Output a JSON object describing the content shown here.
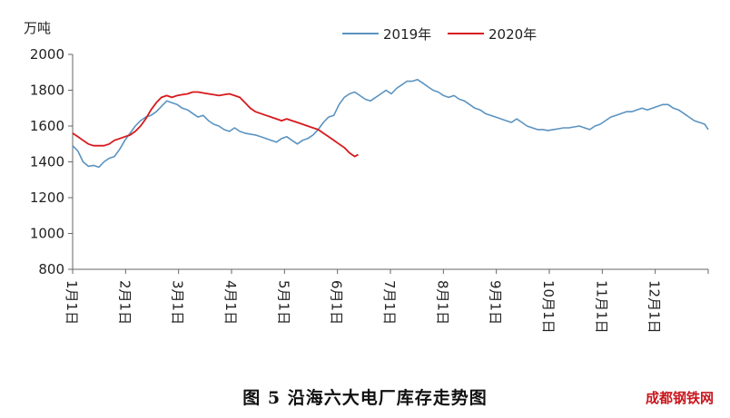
{
  "chart_data": {
    "type": "line",
    "unit_label": "万吨",
    "ylim": [
      800,
      2000
    ],
    "yticks": [
      800,
      1000,
      1200,
      1400,
      1600,
      1800,
      2000
    ],
    "x_categories": [
      "1月1日",
      "2月1日",
      "3月1日",
      "4月1日",
      "5月1日",
      "6月1日",
      "7月1日",
      "8月1日",
      "9月1日",
      "10月1日",
      "11月1日",
      "12月1日"
    ],
    "legend_position": "top-center",
    "grid": false,
    "series": [
      {
        "name": "2019年",
        "color": "#5b93c0",
        "points": [
          [
            0,
            1490
          ],
          [
            3,
            1460
          ],
          [
            6,
            1400
          ],
          [
            9,
            1375
          ],
          [
            12,
            1380
          ],
          [
            15,
            1370
          ],
          [
            18,
            1400
          ],
          [
            21,
            1420
          ],
          [
            24,
            1430
          ],
          [
            27,
            1470
          ],
          [
            30,
            1520
          ],
          [
            33,
            1560
          ],
          [
            36,
            1600
          ],
          [
            39,
            1630
          ],
          [
            42,
            1650
          ],
          [
            45,
            1660
          ],
          [
            48,
            1680
          ],
          [
            51,
            1710
          ],
          [
            54,
            1740
          ],
          [
            57,
            1730
          ],
          [
            60,
            1720
          ],
          [
            63,
            1700
          ],
          [
            66,
            1690
          ],
          [
            69,
            1670
          ],
          [
            72,
            1650
          ],
          [
            75,
            1660
          ],
          [
            78,
            1630
          ],
          [
            81,
            1610
          ],
          [
            84,
            1600
          ],
          [
            87,
            1580
          ],
          [
            90,
            1570
          ],
          [
            93,
            1590
          ],
          [
            96,
            1570
          ],
          [
            99,
            1560
          ],
          [
            102,
            1555
          ],
          [
            105,
            1550
          ],
          [
            108,
            1540
          ],
          [
            111,
            1530
          ],
          [
            114,
            1520
          ],
          [
            117,
            1510
          ],
          [
            120,
            1530
          ],
          [
            123,
            1540
          ],
          [
            126,
            1520
          ],
          [
            129,
            1500
          ],
          [
            132,
            1520
          ],
          [
            135,
            1530
          ],
          [
            138,
            1550
          ],
          [
            141,
            1580
          ],
          [
            144,
            1620
          ],
          [
            147,
            1650
          ],
          [
            150,
            1660
          ],
          [
            153,
            1720
          ],
          [
            156,
            1760
          ],
          [
            159,
            1780
          ],
          [
            162,
            1790
          ],
          [
            165,
            1770
          ],
          [
            168,
            1750
          ],
          [
            171,
            1740
          ],
          [
            174,
            1760
          ],
          [
            177,
            1780
          ],
          [
            180,
            1800
          ],
          [
            183,
            1780
          ],
          [
            186,
            1810
          ],
          [
            189,
            1830
          ],
          [
            192,
            1850
          ],
          [
            195,
            1850
          ],
          [
            198,
            1860
          ],
          [
            201,
            1840
          ],
          [
            204,
            1820
          ],
          [
            207,
            1800
          ],
          [
            210,
            1790
          ],
          [
            213,
            1770
          ],
          [
            216,
            1760
          ],
          [
            219,
            1770
          ],
          [
            222,
            1750
          ],
          [
            225,
            1740
          ],
          [
            228,
            1720
          ],
          [
            231,
            1700
          ],
          [
            234,
            1690
          ],
          [
            237,
            1670
          ],
          [
            240,
            1660
          ],
          [
            243,
            1650
          ],
          [
            246,
            1640
          ],
          [
            249,
            1630
          ],
          [
            252,
            1620
          ],
          [
            255,
            1640
          ],
          [
            258,
            1620
          ],
          [
            261,
            1600
          ],
          [
            264,
            1590
          ],
          [
            267,
            1580
          ],
          [
            270,
            1580
          ],
          [
            273,
            1575
          ],
          [
            276,
            1580
          ],
          [
            279,
            1585
          ],
          [
            282,
            1590
          ],
          [
            285,
            1590
          ],
          [
            288,
            1595
          ],
          [
            291,
            1600
          ],
          [
            294,
            1590
          ],
          [
            297,
            1580
          ],
          [
            300,
            1600
          ],
          [
            303,
            1610
          ],
          [
            306,
            1630
          ],
          [
            309,
            1650
          ],
          [
            312,
            1660
          ],
          [
            315,
            1670
          ],
          [
            318,
            1680
          ],
          [
            321,
            1680
          ],
          [
            324,
            1690
          ],
          [
            327,
            1700
          ],
          [
            330,
            1690
          ],
          [
            333,
            1700
          ],
          [
            336,
            1710
          ],
          [
            339,
            1720
          ],
          [
            342,
            1720
          ],
          [
            345,
            1700
          ],
          [
            348,
            1690
          ],
          [
            351,
            1670
          ],
          [
            354,
            1650
          ],
          [
            357,
            1630
          ],
          [
            360,
            1620
          ],
          [
            363,
            1610
          ],
          [
            365,
            1580
          ]
        ]
      },
      {
        "name": "2020年",
        "color": "#d7191c",
        "points": [
          [
            0,
            1560
          ],
          [
            3,
            1540
          ],
          [
            6,
            1520
          ],
          [
            9,
            1500
          ],
          [
            12,
            1490
          ],
          [
            15,
            1490
          ],
          [
            18,
            1490
          ],
          [
            21,
            1500
          ],
          [
            24,
            1520
          ],
          [
            27,
            1530
          ],
          [
            30,
            1540
          ],
          [
            33,
            1550
          ],
          [
            36,
            1570
          ],
          [
            39,
            1600
          ],
          [
            42,
            1640
          ],
          [
            45,
            1690
          ],
          [
            48,
            1730
          ],
          [
            51,
            1760
          ],
          [
            54,
            1770
          ],
          [
            57,
            1760
          ],
          [
            60,
            1770
          ],
          [
            63,
            1775
          ],
          [
            66,
            1780
          ],
          [
            69,
            1790
          ],
          [
            72,
            1790
          ],
          [
            75,
            1785
          ],
          [
            78,
            1780
          ],
          [
            81,
            1775
          ],
          [
            84,
            1770
          ],
          [
            87,
            1775
          ],
          [
            90,
            1780
          ],
          [
            93,
            1770
          ],
          [
            96,
            1760
          ],
          [
            99,
            1730
          ],
          [
            102,
            1700
          ],
          [
            105,
            1680
          ],
          [
            108,
            1670
          ],
          [
            111,
            1660
          ],
          [
            114,
            1650
          ],
          [
            117,
            1640
          ],
          [
            120,
            1630
          ],
          [
            123,
            1640
          ],
          [
            126,
            1630
          ],
          [
            129,
            1620
          ],
          [
            132,
            1610
          ],
          [
            135,
            1600
          ],
          [
            138,
            1590
          ],
          [
            141,
            1580
          ],
          [
            144,
            1560
          ],
          [
            147,
            1540
          ],
          [
            150,
            1520
          ],
          [
            153,
            1500
          ],
          [
            156,
            1480
          ],
          [
            159,
            1450
          ],
          [
            162,
            1430
          ],
          [
            164,
            1440
          ]
        ]
      }
    ]
  },
  "caption": "图 5  沿海六大电厂库存走势图",
  "brand": "成都钢铁网"
}
